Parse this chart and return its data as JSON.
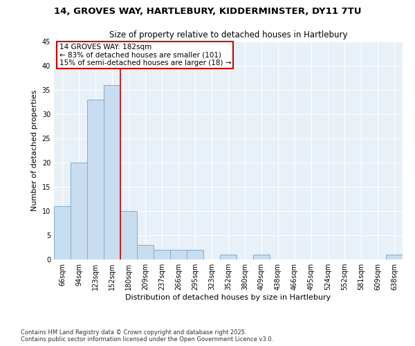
{
  "title_line1": "14, GROVES WAY, HARTLEBURY, KIDDERMINSTER, DY11 7TU",
  "title_line2": "Size of property relative to detached houses in Hartlebury",
  "xlabel": "Distribution of detached houses by size in Hartlebury",
  "ylabel": "Number of detached properties",
  "categories": [
    "66sqm",
    "94sqm",
    "123sqm",
    "152sqm",
    "180sqm",
    "209sqm",
    "237sqm",
    "266sqm",
    "295sqm",
    "323sqm",
    "352sqm",
    "380sqm",
    "409sqm",
    "438sqm",
    "466sqm",
    "495sqm",
    "524sqm",
    "552sqm",
    "581sqm",
    "609sqm",
    "638sqm"
  ],
  "values": [
    11,
    20,
    33,
    36,
    10,
    3,
    2,
    2,
    2,
    0,
    1,
    0,
    1,
    0,
    0,
    0,
    0,
    0,
    0,
    0,
    1
  ],
  "bar_color": "#c9ddf0",
  "bar_edge_color": "#7aadd4",
  "property_line_color": "#cc0000",
  "annotation_text": "14 GROVES WAY: 182sqm\n← 83% of detached houses are smaller (101)\n15% of semi-detached houses are larger (18) →",
  "annotation_box_color": "#ffffff",
  "annotation_box_edge_color": "#cc0000",
  "ylim": [
    0,
    45
  ],
  "yticks": [
    0,
    5,
    10,
    15,
    20,
    25,
    30,
    35,
    40,
    45
  ],
  "background_color": "#e8f0f8",
  "grid_color": "#ffffff",
  "footer_line1": "Contains HM Land Registry data © Crown copyright and database right 2025.",
  "footer_line2": "Contains public sector information licensed under the Open Government Licence v3.0."
}
